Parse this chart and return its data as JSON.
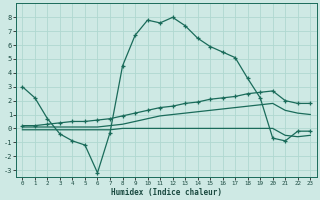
{
  "xlabel": "Humidex (Indice chaleur)",
  "background_color": "#cee9e4",
  "grid_color": "#b0d8d0",
  "line_color": "#1a6b5a",
  "xlim": [
    -0.5,
    23.5
  ],
  "ylim": [
    -3.5,
    9.0
  ],
  "xticks": [
    0,
    1,
    2,
    3,
    4,
    5,
    6,
    7,
    8,
    9,
    10,
    11,
    12,
    13,
    14,
    15,
    16,
    17,
    18,
    19,
    20,
    21,
    22,
    23
  ],
  "yticks": [
    -3,
    -2,
    -1,
    0,
    1,
    2,
    3,
    4,
    5,
    6,
    7,
    8
  ],
  "series1_x": [
    0,
    1,
    2,
    3,
    4,
    5,
    6,
    7,
    8,
    9,
    10,
    11,
    12,
    13,
    14,
    15,
    16,
    17,
    18,
    19,
    20,
    21,
    22,
    23
  ],
  "series1_y": [
    3.0,
    2.2,
    0.7,
    -0.4,
    -0.9,
    -1.2,
    -3.2,
    -0.3,
    4.5,
    6.7,
    7.8,
    7.6,
    8.0,
    7.4,
    6.5,
    5.9,
    5.5,
    5.1,
    3.6,
    2.2,
    -0.7,
    -0.9,
    -0.2,
    -0.2
  ],
  "series2_x": [
    0,
    1,
    2,
    3,
    4,
    5,
    6,
    7,
    8,
    9,
    10,
    11,
    12,
    13,
    14,
    15,
    16,
    17,
    18,
    19,
    20,
    21,
    22,
    23
  ],
  "series2_y": [
    0.2,
    0.2,
    0.3,
    0.4,
    0.5,
    0.5,
    0.6,
    0.7,
    0.9,
    1.1,
    1.3,
    1.5,
    1.6,
    1.8,
    1.9,
    2.1,
    2.2,
    2.3,
    2.5,
    2.6,
    2.7,
    2.0,
    1.8,
    1.8
  ],
  "series3_x": [
    0,
    1,
    2,
    3,
    4,
    5,
    6,
    7,
    8,
    9,
    10,
    11,
    12,
    13,
    14,
    15,
    16,
    17,
    18,
    19,
    20,
    21,
    22,
    23
  ],
  "series3_y": [
    0.1,
    0.1,
    0.1,
    0.1,
    0.1,
    0.1,
    0.1,
    0.2,
    0.3,
    0.5,
    0.7,
    0.9,
    1.0,
    1.1,
    1.2,
    1.3,
    1.4,
    1.5,
    1.6,
    1.7,
    1.8,
    1.3,
    1.1,
    1.0
  ],
  "series4_x": [
    0,
    1,
    2,
    3,
    4,
    5,
    6,
    7,
    8,
    9,
    10,
    11,
    12,
    13,
    14,
    15,
    16,
    17,
    18,
    19,
    20,
    21,
    22,
    23
  ],
  "series4_y": [
    -0.1,
    -0.1,
    -0.1,
    -0.1,
    -0.1,
    -0.1,
    -0.1,
    -0.1,
    0.0,
    0.0,
    0.0,
    0.0,
    0.0,
    0.0,
    0.0,
    0.0,
    0.0,
    0.0,
    0.0,
    0.0,
    0.0,
    -0.5,
    -0.6,
    -0.5
  ]
}
